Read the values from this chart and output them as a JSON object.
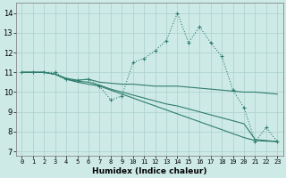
{
  "xlabel": "Humidex (Indice chaleur)",
  "xlim": [
    -0.5,
    23.5
  ],
  "ylim": [
    6.8,
    14.5
  ],
  "yticks": [
    7,
    8,
    9,
    10,
    11,
    12,
    13,
    14
  ],
  "xticks": [
    0,
    1,
    2,
    3,
    4,
    5,
    6,
    7,
    8,
    9,
    10,
    11,
    12,
    13,
    14,
    15,
    16,
    17,
    18,
    19,
    20,
    21,
    22,
    23
  ],
  "bg_color": "#ceeae6",
  "grid_color": "#aed4cf",
  "line_color": "#2e7d6e",
  "ys_spike": [
    11.0,
    11.0,
    11.0,
    11.0,
    10.65,
    10.6,
    10.65,
    10.3,
    9.6,
    9.8,
    11.5,
    11.7,
    12.1,
    12.6,
    14.0,
    12.5,
    13.3,
    12.5,
    11.8,
    10.1,
    9.2,
    7.5,
    8.2,
    7.5
  ],
  "ys_flat": [
    11.0,
    11.0,
    11.0,
    10.9,
    10.7,
    10.6,
    10.65,
    10.5,
    10.45,
    10.4,
    10.4,
    10.35,
    10.3,
    10.3,
    10.3,
    10.25,
    10.2,
    10.15,
    10.1,
    10.05,
    10.0,
    10.0,
    9.95,
    9.9
  ],
  "ys_mid": [
    11.0,
    11.0,
    11.0,
    10.9,
    10.65,
    10.55,
    10.5,
    10.35,
    10.15,
    10.0,
    9.85,
    9.7,
    9.55,
    9.4,
    9.3,
    9.15,
    9.0,
    8.85,
    8.7,
    8.55,
    8.4,
    7.6,
    7.55,
    7.5
  ],
  "ys_steep": [
    11.0,
    11.0,
    11.0,
    10.9,
    10.65,
    10.5,
    10.4,
    10.3,
    10.1,
    9.9,
    9.7,
    9.5,
    9.3,
    9.1,
    8.9,
    8.7,
    8.5,
    8.3,
    8.1,
    7.9,
    7.7,
    7.55,
    7.52,
    7.5
  ]
}
